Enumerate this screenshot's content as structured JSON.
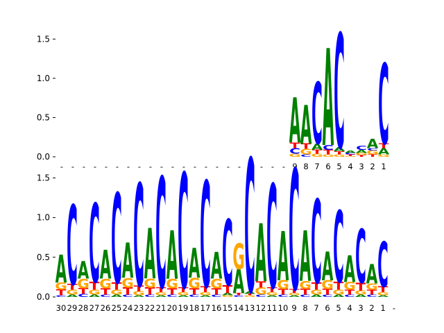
{
  "colors": {
    "A": "#008000",
    "C": "#0000ff",
    "G": "#ffa500",
    "T": "#ff0000"
  },
  "chart_data": [
    {
      "type": "sequence-logo",
      "ylim": [
        0,
        1.6
      ],
      "yticks": [
        "0.0",
        "0.5",
        "1.0",
        "1.5"
      ],
      "slots": 30,
      "positions": [
        {
          "label": "-",
          "letters": []
        },
        {
          "label": "-",
          "letters": []
        },
        {
          "label": "-",
          "letters": []
        },
        {
          "label": "-",
          "letters": []
        },
        {
          "label": "-",
          "letters": []
        },
        {
          "label": "-",
          "letters": []
        },
        {
          "label": "-",
          "letters": []
        },
        {
          "label": "-",
          "letters": []
        },
        {
          "label": "-",
          "letters": []
        },
        {
          "label": "-",
          "letters": []
        },
        {
          "label": "-",
          "letters": []
        },
        {
          "label": "-",
          "letters": []
        },
        {
          "label": "-",
          "letters": []
        },
        {
          "label": "-",
          "letters": []
        },
        {
          "label": "-",
          "letters": []
        },
        {
          "label": "-",
          "letters": []
        },
        {
          "label": "-",
          "letters": []
        },
        {
          "label": "-",
          "letters": []
        },
        {
          "label": "-",
          "letters": []
        },
        {
          "label": "-",
          "letters": []
        },
        {
          "label": "-",
          "letters": []
        },
        {
          "label": "9",
          "letters": [
            [
              "G",
              0.04
            ],
            [
              "C",
              0.07
            ],
            [
              "T",
              0.07
            ],
            [
              "A",
              0.57
            ]
          ]
        },
        {
          "label": "8",
          "letters": [
            [
              "C",
              0.03
            ],
            [
              "G",
              0.07
            ],
            [
              "T",
              0.07
            ],
            [
              "A",
              0.49
            ]
          ]
        },
        {
          "label": "7",
          "letters": [
            [
              "G",
              0.04
            ],
            [
              "T",
              0.05
            ],
            [
              "A",
              0.08
            ],
            [
              "C",
              0.77
            ]
          ]
        },
        {
          "label": "6",
          "letters": [
            [
              "G",
              0.03
            ],
            [
              "T",
              0.06
            ],
            [
              "C",
              0.06
            ],
            [
              "A",
              1.22
            ]
          ]
        },
        {
          "label": "5",
          "letters": [
            [
              "G",
              0.03
            ],
            [
              "T",
              0.04
            ],
            [
              "A",
              0.05
            ],
            [
              "C",
              1.44
            ]
          ]
        },
        {
          "label": "4",
          "letters": [
            [
              "G",
              0.01
            ],
            [
              "T",
              0.02
            ],
            [
              "C",
              0.02
            ],
            [
              "A",
              0.03
            ]
          ]
        },
        {
          "label": "3",
          "letters": [
            [
              "T",
              0.02
            ],
            [
              "G",
              0.03
            ],
            [
              "A",
              0.04
            ],
            [
              "C",
              0.05
            ]
          ]
        },
        {
          "label": "2",
          "letters": [
            [
              "T",
              0.03
            ],
            [
              "G",
              0.05
            ],
            [
              "C",
              0.03
            ],
            [
              "A",
              0.12
            ]
          ]
        },
        {
          "label": "1",
          "letters": [
            [
              "G",
              0.03
            ],
            [
              "A",
              0.08
            ],
            [
              "T",
              0.06
            ],
            [
              "C",
              1.01
            ]
          ]
        }
      ]
    },
    {
      "type": "sequence-logo",
      "ylim": [
        0,
        1.6
      ],
      "yticks": [
        "0.0",
        "0.5",
        "1.0",
        "1.5"
      ],
      "slots": 31,
      "positions": [
        {
          "label": "30",
          "letters": [
            [
              "C",
              0.02
            ],
            [
              "T",
              0.07
            ],
            [
              "G",
              0.09
            ],
            [
              "A",
              0.35
            ]
          ]
        },
        {
          "label": "29",
          "letters": [
            [
              "A",
              0.03
            ],
            [
              "G",
              0.06
            ],
            [
              "T",
              0.07
            ],
            [
              "C",
              0.99
            ]
          ]
        },
        {
          "label": "28",
          "letters": [
            [
              "C",
              0.04
            ],
            [
              "T",
              0.07
            ],
            [
              "G",
              0.12
            ],
            [
              "A",
              0.22
            ]
          ]
        },
        {
          "label": "27",
          "letters": [
            [
              "A",
              0.03
            ],
            [
              "G",
              0.06
            ],
            [
              "T",
              0.1
            ],
            [
              "C",
              0.98
            ]
          ]
        },
        {
          "label": "26",
          "letters": [
            [
              "C",
              0.03
            ],
            [
              "T",
              0.08
            ],
            [
              "G",
              0.12
            ],
            [
              "A",
              0.36
            ]
          ]
        },
        {
          "label": "25",
          "letters": [
            [
              "A",
              0.03
            ],
            [
              "G",
              0.06
            ],
            [
              "T",
              0.09
            ],
            [
              "C",
              1.12
            ]
          ]
        },
        {
          "label": "24",
          "letters": [
            [
              "C",
              0.03
            ],
            [
              "T",
              0.09
            ],
            [
              "G",
              0.12
            ],
            [
              "A",
              0.44
            ]
          ]
        },
        {
          "label": "23",
          "letters": [
            [
              "A",
              0.02
            ],
            [
              "G",
              0.05
            ],
            [
              "T",
              0.07
            ],
            [
              "C",
              1.28
            ]
          ]
        },
        {
          "label": "22",
          "letters": [
            [
              "C",
              0.03
            ],
            [
              "T",
              0.09
            ],
            [
              "G",
              0.11
            ],
            [
              "A",
              0.63
            ]
          ]
        },
        {
          "label": "21",
          "letters": [
            [
              "A",
              0.02
            ],
            [
              "G",
              0.04
            ],
            [
              "T",
              0.06
            ],
            [
              "C",
              1.38
            ]
          ]
        },
        {
          "label": "20",
          "letters": [
            [
              "C",
              0.03
            ],
            [
              "T",
              0.08
            ],
            [
              "G",
              0.12
            ],
            [
              "A",
              0.6
            ]
          ]
        },
        {
          "label": "19",
          "letters": [
            [
              "A",
              0.02
            ],
            [
              "G",
              0.04
            ],
            [
              "T",
              0.06
            ],
            [
              "C",
              1.43
            ]
          ]
        },
        {
          "label": "18",
          "letters": [
            [
              "C",
              0.03
            ],
            [
              "T",
              0.08
            ],
            [
              "G",
              0.13
            ],
            [
              "A",
              0.37
            ]
          ]
        },
        {
          "label": "17",
          "letters": [
            [
              "A",
              0.02
            ],
            [
              "G",
              0.04
            ],
            [
              "T",
              0.07
            ],
            [
              "C",
              1.32
            ]
          ]
        },
        {
          "label": "16",
          "letters": [
            [
              "C",
              0.03
            ],
            [
              "T",
              0.08
            ],
            [
              "G",
              0.12
            ],
            [
              "A",
              0.33
            ]
          ]
        },
        {
          "label": "15",
          "letters": [
            [
              "G",
              0.02
            ],
            [
              "A",
              0.03
            ],
            [
              "T",
              0.1
            ],
            [
              "C",
              0.82
            ]
          ]
        },
        {
          "label": "14",
          "letters": [
            [
              "C",
              0.02
            ],
            [
              "T",
              0.03
            ],
            [
              "A",
              0.3
            ],
            [
              "G",
              0.32
            ]
          ]
        },
        {
          "label": "13",
          "letters": [
            [
              "G",
              0.02
            ],
            [
              "T",
              0.02
            ],
            [
              "A",
              0.03
            ],
            [
              "C",
              1.66
            ]
          ]
        },
        {
          "label": "12",
          "letters": [
            [
              "C",
              0.03
            ],
            [
              "G",
              0.09
            ],
            [
              "T",
              0.08
            ],
            [
              "A",
              0.72
            ]
          ]
        },
        {
          "label": "11",
          "letters": [
            [
              "A",
              0.02
            ],
            [
              "G",
              0.04
            ],
            [
              "T",
              0.06
            ],
            [
              "C",
              1.29
            ]
          ]
        },
        {
          "label": "10",
          "letters": [
            [
              "C",
              0.03
            ],
            [
              "T",
              0.07
            ],
            [
              "G",
              0.11
            ],
            [
              "A",
              0.61
            ]
          ]
        },
        {
          "label": "9",
          "letters": [
            [
              "A",
              0.02
            ],
            [
              "G",
              0.03
            ],
            [
              "T",
              0.05
            ],
            [
              "C",
              1.5
            ]
          ]
        },
        {
          "label": "8",
          "letters": [
            [
              "C",
              0.03
            ],
            [
              "T",
              0.07
            ],
            [
              "G",
              0.1
            ],
            [
              "A",
              0.63
            ]
          ]
        },
        {
          "label": "7",
          "letters": [
            [
              "A",
              0.03
            ],
            [
              "G",
              0.06
            ],
            [
              "T",
              0.09
            ],
            [
              "C",
              1.04
            ]
          ]
        },
        {
          "label": "6",
          "letters": [
            [
              "C",
              0.03
            ],
            [
              "T",
              0.07
            ],
            [
              "G",
              0.11
            ],
            [
              "A",
              0.36
            ]
          ]
        },
        {
          "label": "5",
          "letters": [
            [
              "A",
              0.03
            ],
            [
              "G",
              0.06
            ],
            [
              "T",
              0.1
            ],
            [
              "C",
              0.89
            ]
          ]
        },
        {
          "label": "4",
          "letters": [
            [
              "C",
              0.03
            ],
            [
              "T",
              0.06
            ],
            [
              "G",
              0.1
            ],
            [
              "A",
              0.33
            ]
          ]
        },
        {
          "label": "3",
          "letters": [
            [
              "A",
              0.03
            ],
            [
              "G",
              0.05
            ],
            [
              "T",
              0.1
            ],
            [
              "C",
              0.67
            ]
          ]
        },
        {
          "label": "2",
          "letters": [
            [
              "C",
              0.03
            ],
            [
              "T",
              0.06
            ],
            [
              "G",
              0.08
            ],
            [
              "A",
              0.24
            ]
          ]
        },
        {
          "label": "1",
          "letters": [
            [
              "A",
              0.02
            ],
            [
              "G",
              0.04
            ],
            [
              "T",
              0.07
            ],
            [
              "C",
              0.56
            ]
          ]
        },
        {
          "label": "-",
          "letters": []
        }
      ]
    }
  ]
}
